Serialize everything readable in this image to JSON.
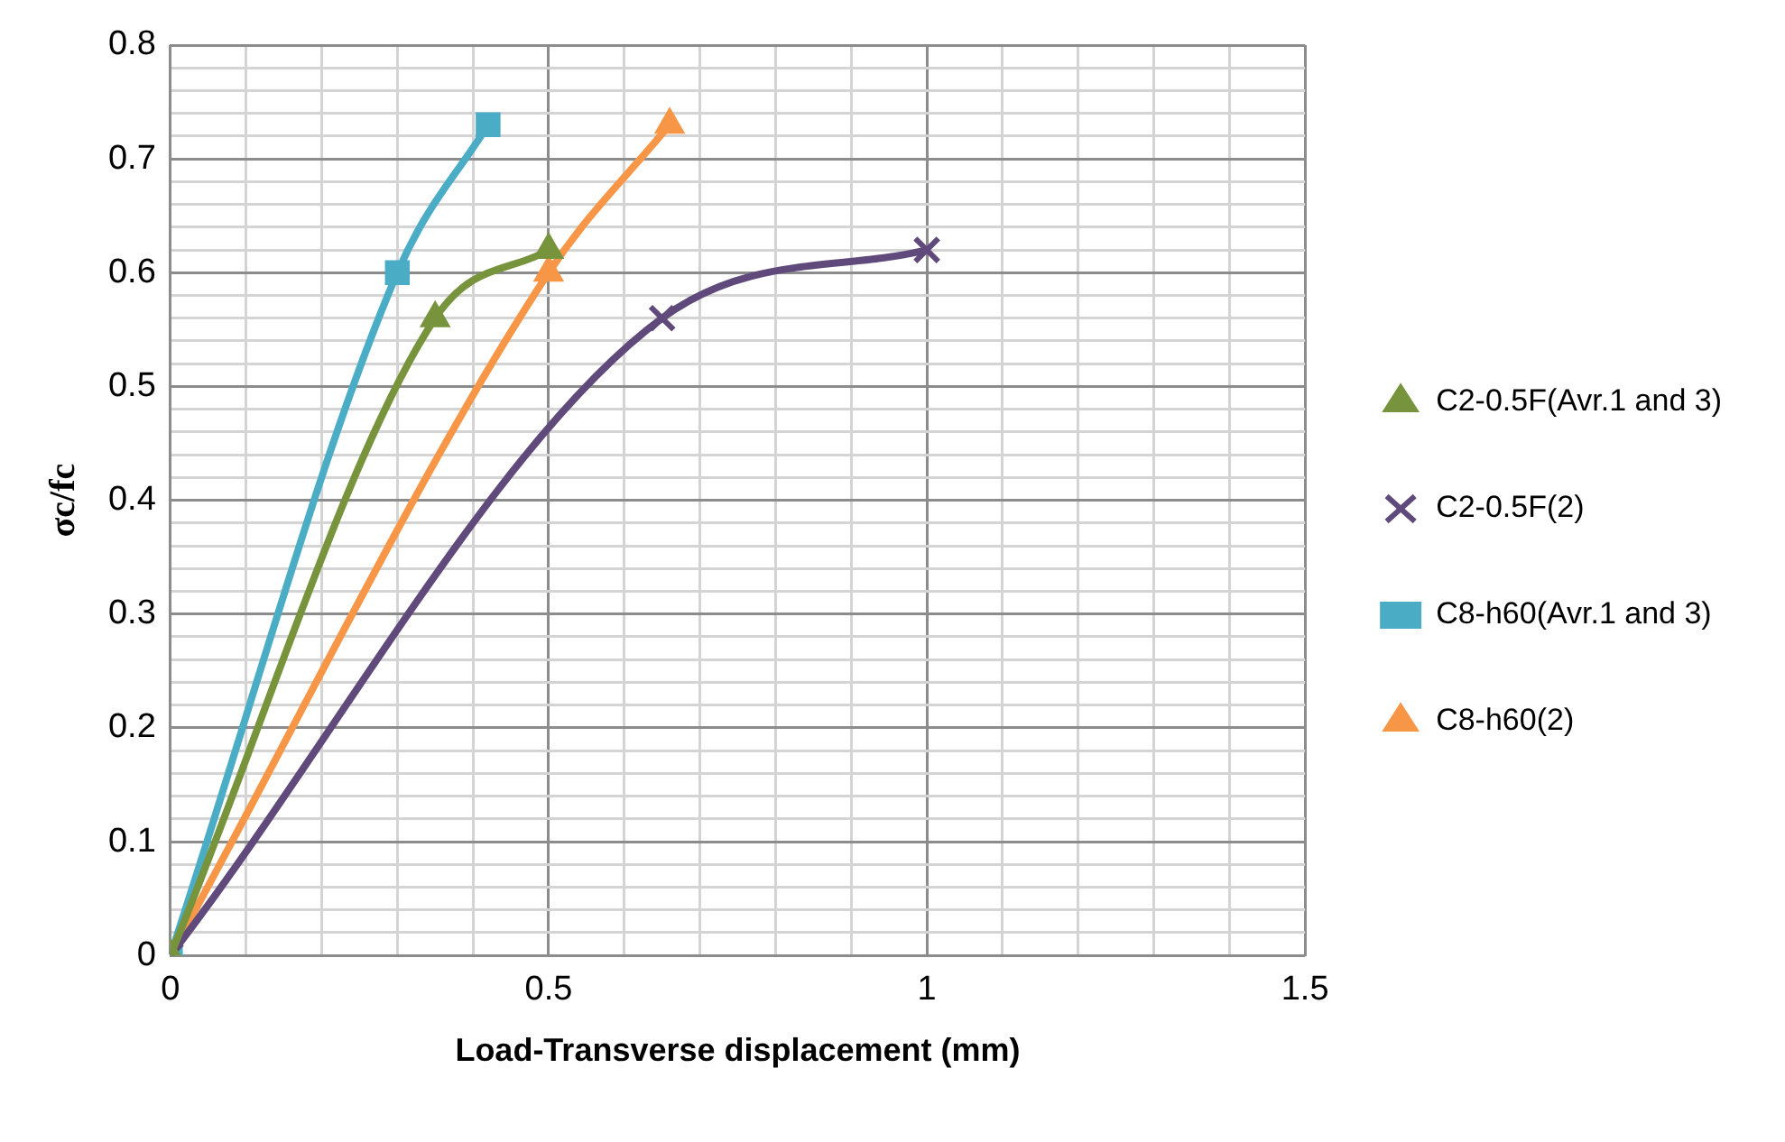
{
  "chart_data": {
    "type": "line",
    "xlabel": "Load-Transverse displacement (mm)",
    "ylabel": "σc/fc",
    "xlim": [
      0,
      1.5
    ],
    "ylim": [
      0,
      0.8
    ],
    "xticks": [
      0,
      {
        "value": 0.1,
        "label": null
      },
      {
        "value": 0.2,
        "label": null
      },
      {
        "value": 0.3,
        "label": null
      },
      {
        "value": 0.4,
        "label": null
      },
      0.5,
      {
        "value": 0.6,
        "label": null
      },
      {
        "value": 0.7,
        "label": null
      },
      {
        "value": 0.8,
        "label": null
      },
      {
        "value": 0.9,
        "label": null
      },
      1,
      {
        "value": 1.1,
        "label": null
      },
      {
        "value": 1.2,
        "label": null
      },
      {
        "value": 1.3,
        "label": null
      },
      {
        "value": 1.4,
        "label": null
      },
      1.5
    ],
    "yticks": [
      0,
      {
        "value": 0.02,
        "label": null
      },
      {
        "value": 0.04,
        "label": null
      },
      {
        "value": 0.06,
        "label": null
      },
      {
        "value": 0.08,
        "label": null
      },
      0.1,
      {
        "value": 0.12,
        "label": null
      },
      {
        "value": 0.14,
        "label": null
      },
      {
        "value": 0.16,
        "label": null
      },
      {
        "value": 0.18,
        "label": null
      },
      0.2,
      {
        "value": 0.22,
        "label": null
      },
      {
        "value": 0.24,
        "label": null
      },
      {
        "value": 0.26,
        "label": null
      },
      {
        "value": 0.28,
        "label": null
      },
      0.3,
      {
        "value": 0.32,
        "label": null
      },
      {
        "value": 0.34,
        "label": null
      },
      {
        "value": 0.36,
        "label": null
      },
      {
        "value": 0.38,
        "label": null
      },
      0.4,
      {
        "value": 0.42,
        "label": null
      },
      {
        "value": 0.44,
        "label": null
      },
      {
        "value": 0.46,
        "label": null
      },
      {
        "value": 0.48,
        "label": null
      },
      0.5,
      {
        "value": 0.52,
        "label": null
      },
      {
        "value": 0.54,
        "label": null
      },
      {
        "value": 0.56,
        "label": null
      },
      {
        "value": 0.58,
        "label": null
      },
      0.6,
      {
        "value": 0.62,
        "label": null
      },
      {
        "value": 0.64,
        "label": null
      },
      {
        "value": 0.66,
        "label": null
      },
      {
        "value": 0.68,
        "label": null
      },
      0.7,
      {
        "value": 0.72,
        "label": null
      },
      {
        "value": 0.74,
        "label": null
      },
      {
        "value": 0.76,
        "label": null
      },
      {
        "value": 0.78,
        "label": null
      },
      0.8
    ],
    "grid": true,
    "legend": "right",
    "series": [
      {
        "name": "C2-0.5F(Avr.1 and 3)",
        "color": "#77933c",
        "marker": "triangle",
        "x": [
          0,
          0.35,
          0.5
        ],
        "values": [
          0,
          0.56,
          0.62
        ]
      },
      {
        "name": "C2-0.5F(2)",
        "color": "#604a7b",
        "marker": "cross",
        "x": [
          0,
          0.65,
          1
        ],
        "values": [
          0,
          0.56,
          0.62
        ]
      },
      {
        "name": "C8-h60(Avr.1 and 3)",
        "color": "#4bacc6",
        "marker": "square",
        "x": [
          0,
          0.3,
          0.42
        ],
        "values": [
          0,
          0.6,
          0.73
        ]
      },
      {
        "name": "C8-h60(2)",
        "color": "#f79646",
        "marker": "triangle",
        "x": [
          0,
          0.5,
          0.66
        ],
        "values": [
          0,
          0.6,
          0.73
        ]
      }
    ]
  }
}
